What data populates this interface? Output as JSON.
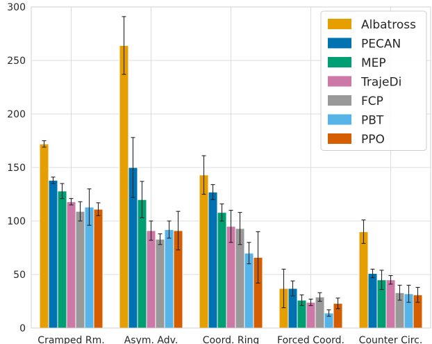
{
  "chart_data": {
    "type": "bar",
    "title": "",
    "xlabel": "",
    "ylabel": "",
    "categories": [
      "Cramped Rm.",
      "Asym. Adv.",
      "Coord. Ring",
      "Forced Coord.",
      "Counter Circ."
    ],
    "ylim": [
      0,
      300
    ],
    "yticks": [
      0,
      50,
      100,
      150,
      200,
      250,
      300
    ],
    "grid": true,
    "legend_position": "top-right",
    "series": [
      {
        "name": "Albatross",
        "color": "#E69F00",
        "values": [
          172,
          264,
          143,
          37,
          90
        ],
        "errors": [
          3,
          27,
          18,
          18,
          11
        ]
      },
      {
        "name": "PECAN",
        "color": "#0072B2",
        "values": [
          138,
          150,
          127,
          37,
          51
        ],
        "errors": [
          3,
          28,
          7,
          7,
          4
        ]
      },
      {
        "name": "MEP",
        "color": "#009E73",
        "values": [
          128,
          120,
          108,
          26,
          45
        ],
        "errors": [
          7,
          17,
          8,
          5,
          9
        ]
      },
      {
        "name": "TrajeDi",
        "color": "#CC79A7",
        "values": [
          118,
          91,
          95,
          24,
          45
        ],
        "errors": [
          3,
          9,
          15,
          3,
          4
        ]
      },
      {
        "name": "FCP",
        "color": "#999999",
        "values": [
          109,
          83,
          93,
          29,
          33
        ],
        "errors": [
          9,
          5,
          15,
          4,
          7
        ]
      },
      {
        "name": "PBT",
        "color": "#56B4E9",
        "values": [
          113,
          92,
          70,
          14,
          32
        ],
        "errors": [
          17,
          8,
          10,
          3,
          8
        ]
      },
      {
        "name": "PPO",
        "color": "#D55E00",
        "values": [
          111,
          91,
          66,
          23,
          31
        ],
        "errors": [
          6,
          18,
          24,
          5,
          7
        ]
      }
    ]
  }
}
